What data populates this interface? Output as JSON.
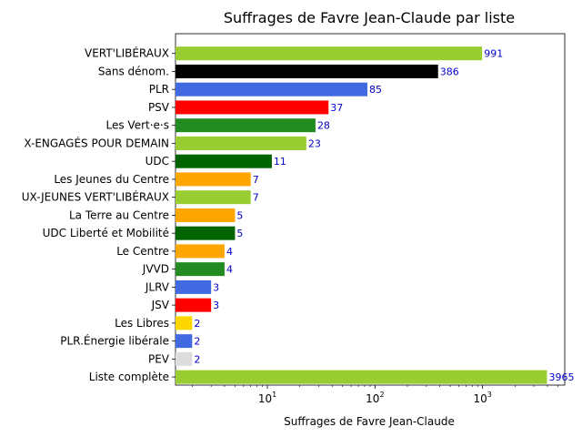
{
  "chart_data": {
    "type": "bar",
    "orientation": "horizontal",
    "title": "Suffrages de Favre Jean-Claude par liste",
    "xlabel": "Suffrages de Favre Jean-Claude",
    "ylabel": "",
    "xscale": "log",
    "xlim": [
      1.4,
      5800
    ],
    "x_ticks": [
      {
        "base": "10",
        "exp": "1",
        "value": 10
      },
      {
        "base": "10",
        "exp": "2",
        "value": 100
      },
      {
        "base": "10",
        "exp": "3",
        "value": 1000
      }
    ],
    "grid": false,
    "bars": [
      {
        "label": "VERT'LIBÉRAUX",
        "value": 991,
        "value_label": "991",
        "color": "#9acd32"
      },
      {
        "label": "Sans dénom.",
        "value": 386,
        "value_label": "386",
        "color": "#000000"
      },
      {
        "label": "PLR",
        "value": 85,
        "value_label": "85",
        "color": "#4169e1"
      },
      {
        "label": "PSV",
        "value": 37,
        "value_label": "37",
        "color": "#ff0000"
      },
      {
        "label": "Les Vert·e·s",
        "value": 28,
        "value_label": "28",
        "color": "#228b22"
      },
      {
        "label": "X-ENGAGÉS POUR DEMAIN",
        "value": 23,
        "value_label": "23",
        "color": "#9acd32"
      },
      {
        "label": "UDC",
        "value": 11,
        "value_label": "11",
        "color": "#006400"
      },
      {
        "label": "Les Jeunes du Centre",
        "value": 7,
        "value_label": "7",
        "color": "#ffa500"
      },
      {
        "label": "UX-JEUNES VERT'LIBÉRAUX",
        "value": 7,
        "value_label": "7",
        "color": "#9acd32"
      },
      {
        "label": "La Terre au Centre",
        "value": 5,
        "value_label": "5",
        "color": "#ffa500"
      },
      {
        "label": "UDC Liberté et Mobilité",
        "value": 5,
        "value_label": "5",
        "color": "#006400"
      },
      {
        "label": "Le Centre",
        "value": 4,
        "value_label": "4",
        "color": "#ffa500"
      },
      {
        "label": "JVVD",
        "value": 4,
        "value_label": "4",
        "color": "#228b22"
      },
      {
        "label": "JLRV",
        "value": 3,
        "value_label": "3",
        "color": "#4169e1"
      },
      {
        "label": "JSV",
        "value": 3,
        "value_label": "3",
        "color": "#ff0000"
      },
      {
        "label": "Les Libres",
        "value": 2,
        "value_label": "2",
        "color": "#ffd700"
      },
      {
        "label": "PLR.Énergie libérale",
        "value": 2,
        "value_label": "2",
        "color": "#4169e1"
      },
      {
        "label": "PEV",
        "value": 2,
        "value_label": "2",
        "color": "#dcdcdc"
      },
      {
        "label": "Liste complète",
        "value": 3965,
        "value_label": "3965",
        "color": "#9acd32"
      }
    ]
  }
}
